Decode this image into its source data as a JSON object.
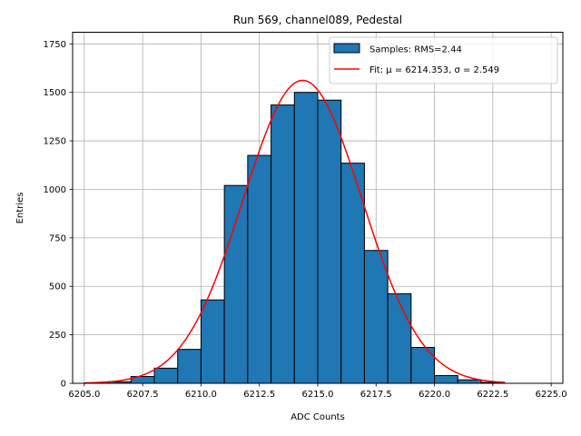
{
  "chart_data": {
    "type": "bar",
    "title": "Run 569, channel089, Pedestal",
    "xlabel": "ADC Counts",
    "ylabel": "Entries",
    "xlim": [
      6204.5,
      6225.5
    ],
    "ylim": [
      0,
      1810
    ],
    "grid": true,
    "legend_position": "top-right",
    "x_ticks": [
      6205.0,
      6207.5,
      6210.0,
      6212.5,
      6215.0,
      6217.5,
      6220.0,
      6222.5,
      6225.0
    ],
    "x_tick_labels": [
      "6205.0",
      "6207.5",
      "6210.0",
      "6212.5",
      "6215.0",
      "6217.5",
      "6220.0",
      "6222.5",
      "6225.0"
    ],
    "y_ticks": [
      0,
      250,
      500,
      750,
      1000,
      1250,
      1500,
      1750
    ],
    "y_tick_labels": [
      "0",
      "250",
      "500",
      "750",
      "1000",
      "1250",
      "1500",
      "1750"
    ],
    "histogram": {
      "name": "Samples: RMS=2.44",
      "color": "#1f77b4",
      "edge_color": "#000000",
      "bins": [
        {
          "x0": 6205,
          "x1": 6206,
          "value": 1
        },
        {
          "x0": 6206,
          "x1": 6207,
          "value": 8
        },
        {
          "x0": 6207,
          "x1": 6208,
          "value": 35
        },
        {
          "x0": 6208,
          "x1": 6209,
          "value": 78
        },
        {
          "x0": 6209,
          "x1": 6210,
          "value": 175
        },
        {
          "x0": 6210,
          "x1": 6211,
          "value": 430
        },
        {
          "x0": 6211,
          "x1": 6212,
          "value": 1020
        },
        {
          "x0": 6212,
          "x1": 6213,
          "value": 1175
        },
        {
          "x0": 6213,
          "x1": 6214,
          "value": 1435
        },
        {
          "x0": 6214,
          "x1": 6215,
          "value": 1500
        },
        {
          "x0": 6215,
          "x1": 6216,
          "value": 1460
        },
        {
          "x0": 6216,
          "x1": 6217,
          "value": 1135
        },
        {
          "x0": 6217,
          "x1": 6218,
          "value": 685
        },
        {
          "x0": 6218,
          "x1": 6219,
          "value": 462
        },
        {
          "x0": 6219,
          "x1": 6220,
          "value": 185
        },
        {
          "x0": 6220,
          "x1": 6221,
          "value": 40
        },
        {
          "x0": 6221,
          "x1": 6222,
          "value": 18
        },
        {
          "x0": 6222,
          "x1": 6223,
          "value": 5
        }
      ]
    },
    "fit": {
      "name": "Fit: μ = 6214.353, σ = 2.549",
      "color": "#ff0000",
      "mu": 6214.353,
      "sigma": 2.549,
      "amplitude": 1562,
      "x_range": [
        6205,
        6223
      ]
    }
  }
}
